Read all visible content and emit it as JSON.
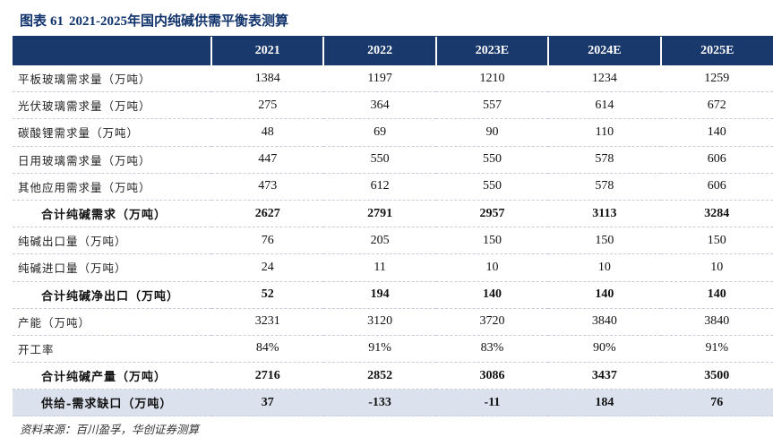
{
  "header": {
    "prefix": "图表",
    "number": "61",
    "range": "2021-2025",
    "title": "年国内纯碱供需平衡表测算"
  },
  "table": {
    "columns": [
      "2021",
      "2022",
      "2023E",
      "2024E",
      "2025E"
    ],
    "rows": [
      {
        "label": "平板玻璃需求量（万吨）",
        "values": [
          "1384",
          "1197",
          "1210",
          "1234",
          "1259"
        ]
      },
      {
        "label": "光伏玻璃需求量（万吨）",
        "values": [
          "275",
          "364",
          "557",
          "614",
          "672"
        ]
      },
      {
        "label": "碳酸锂需求量（万吨）",
        "values": [
          "48",
          "69",
          "90",
          "110",
          "140"
        ]
      },
      {
        "label": "日用玻璃需求量（万吨）",
        "values": [
          "447",
          "550",
          "550",
          "578",
          "606"
        ]
      },
      {
        "label": "其他应用需求量（万吨）",
        "values": [
          "473",
          "612",
          "550",
          "578",
          "606"
        ]
      },
      {
        "label": "合计纯碱需求（万吨）",
        "values": [
          "2627",
          "2791",
          "2957",
          "3113",
          "3284"
        ]
      },
      {
        "label": "纯碱出口量（万吨）",
        "values": [
          "76",
          "205",
          "150",
          "150",
          "150"
        ]
      },
      {
        "label": "纯碱进口量（万吨）",
        "values": [
          "24",
          "11",
          "10",
          "10",
          "10"
        ]
      },
      {
        "label": "合计纯碱净出口（万吨）",
        "values": [
          "52",
          "194",
          "140",
          "140",
          "140"
        ]
      },
      {
        "label": "产能（万吨）",
        "values": [
          "3231",
          "3120",
          "3720",
          "3840",
          "3840"
        ]
      },
      {
        "label": "开工率",
        "values": [
          "84%",
          "91%",
          "83%",
          "90%",
          "91%"
        ]
      },
      {
        "label": "合计纯碱产量（万吨）",
        "values": [
          "2716",
          "2852",
          "3086",
          "3437",
          "3500"
        ]
      },
      {
        "label": "供给-需求缺口（万吨）",
        "values": [
          "37",
          "-133",
          "-11",
          "184",
          "76"
        ]
      }
    ]
  },
  "source": "资料来源：百川盈孚，华创证券测算",
  "colors": {
    "header_bg": "#19386b",
    "title": "#10336b",
    "gap_row_bg": "#dbe2ee"
  }
}
